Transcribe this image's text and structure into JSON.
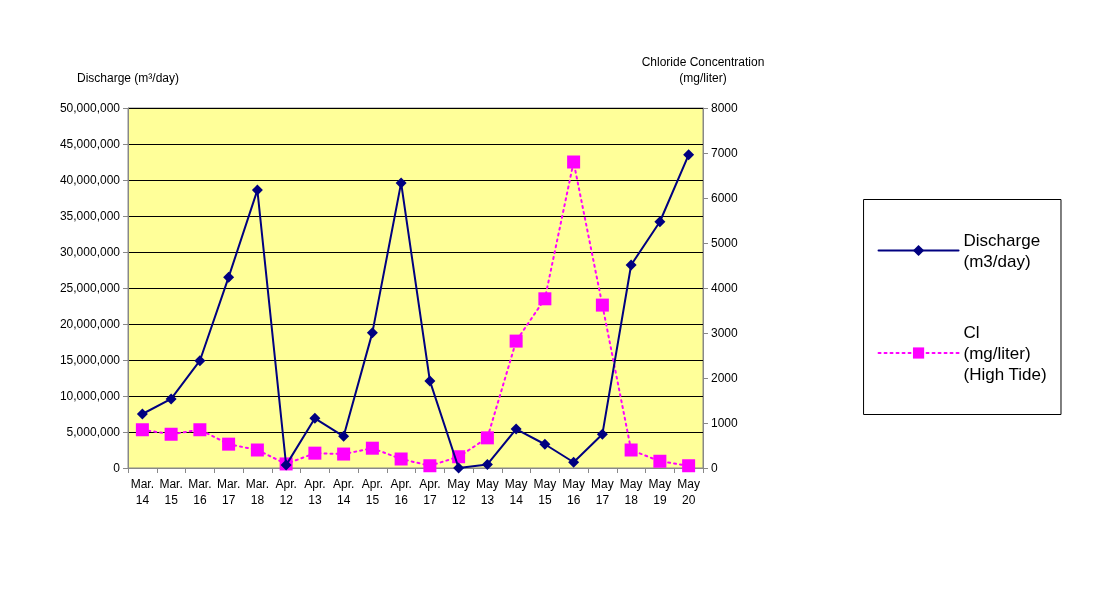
{
  "chart_data": {
    "type": "line",
    "ylabel": "Discharge (m³/day)",
    "y2label": "Chloride Concentration\n(mg/liter)",
    "categories": [
      "Mar.\n14",
      "Mar.\n15",
      "Mar.\n16",
      "Mar.\n17",
      "Mar.\n18",
      "Apr.\n12",
      "Apr.\n13",
      "Apr.\n14",
      "Apr.\n15",
      "Apr.\n16",
      "Apr.\n17",
      "May\n12",
      "May\n13",
      "May\n14",
      "May\n15",
      "May\n16",
      "May\n17",
      "May\n18",
      "May\n19",
      "May\n20"
    ],
    "series": [
      {
        "name": "Discharge\n(m3/day)",
        "color": "#000080",
        "marker": "diamond",
        "line_style": "solid",
        "values": [
          7500000,
          9600000,
          14900000,
          26500000,
          38600000,
          400000,
          6900000,
          4400000,
          18800000,
          39600000,
          12100000,
          0,
          500000,
          5400000,
          3300000,
          800000,
          4700000,
          28200000,
          34200000,
          43500000
        ]
      },
      {
        "name": "Cl\n(mg/liter)\n(High Tide)",
        "color": "#ff00ff",
        "marker": "square",
        "line_style": "dotted",
        "axis": "y2",
        "values": [
          850,
          750,
          850,
          530,
          400,
          90,
          330,
          310,
          440,
          200,
          50,
          250,
          670,
          2820,
          3760,
          6800,
          3620,
          400,
          150,
          50
        ]
      }
    ],
    "ylim": [
      0,
      50000000
    ],
    "yticks": [
      {
        "value": 0,
        "label": "0"
      },
      {
        "value": 5000000,
        "label": "5,000,000"
      },
      {
        "value": 10000000,
        "label": "10,000,000"
      },
      {
        "value": 15000000,
        "label": "15,000,000"
      },
      {
        "value": 20000000,
        "label": "20,000,000"
      },
      {
        "value": 25000000,
        "label": "25,000,000"
      },
      {
        "value": 30000000,
        "label": "30,000,000"
      },
      {
        "value": 35000000,
        "label": "35,000,000"
      },
      {
        "value": 40000000,
        "label": "40,000,000"
      },
      {
        "value": 45000000,
        "label": "45,000,000"
      },
      {
        "value": 50000000,
        "label": "50,000,000"
      }
    ],
    "y2lim": [
      0,
      8000
    ],
    "y2ticks": [
      0,
      1000,
      2000,
      3000,
      4000,
      5000,
      6000,
      7000,
      8000
    ],
    "grid": "y",
    "legend": "right"
  }
}
